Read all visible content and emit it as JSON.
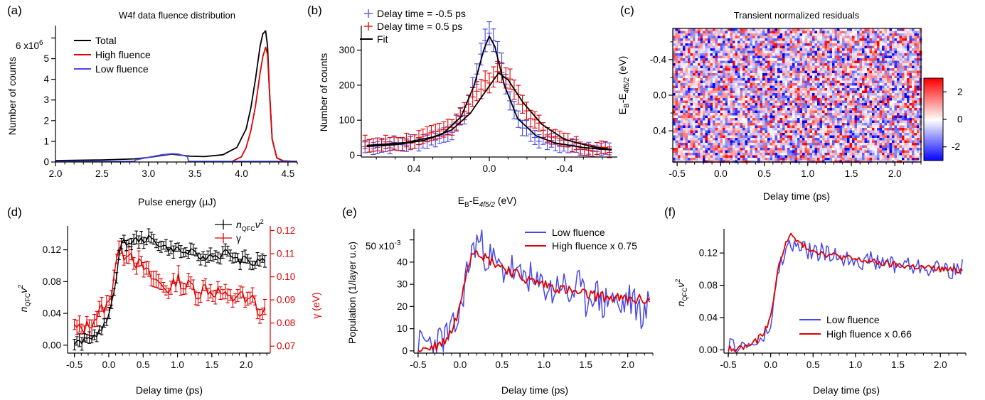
{
  "colors": {
    "black": "#000000",
    "red": "#e00000",
    "blue": "#4848e8",
    "blueDark": "#2a2ad0"
  },
  "panels": {
    "a": {
      "label": "(a)",
      "title": "W4f data fluence distribution",
      "xlabel": "Pulse energy (µJ)",
      "ylabel": "Number of counts",
      "yexp_mant": "6 x10",
      "yexp_pow": "6",
      "legend": [
        "Total",
        "High fluence",
        "Low fluence"
      ]
    },
    "b": {
      "label": "(b)",
      "xlabel_main": "E",
      "xlabel_sub1": "B",
      "xlabel_mid": "-E",
      "xlabel_sub2": "4f5/2",
      "xlabel_unit": " (eV)",
      "ylabel": "Number of counts",
      "legend": [
        "Delay time = -0.5 ps",
        "Delay time = 0.5 ps",
        "Fit"
      ]
    },
    "c": {
      "label": "(c)",
      "title": "Transient normalized residuals",
      "xlabel": "Delay time (ps)",
      "ylabel_main": "E",
      "ylabel_sub1": "B",
      "ylabel_mid": "-E",
      "ylabel_sub2": "4f5/2",
      "ylabel_unit": " (eV)",
      "colorbar_ticks": [
        "2",
        "0",
        "-2"
      ]
    },
    "d": {
      "label": "(d)",
      "xlabel": "Delay time (ps)",
      "ylabel_left": "n",
      "ylabel_left_sub": "QFC",
      "ylabel_left_nu": "ν",
      "ylabel_left_sup": "2",
      "ylabel_right": "γ (eV)",
      "legend": [
        "n",
        "γ"
      ],
      "legend_sub": "QFC",
      "legend_nu": "ν",
      "legend_sup": "2"
    },
    "e": {
      "label": "(e)",
      "xlabel": "Delay time (ps)",
      "ylabel": "Population (1/layer u.c)",
      "yexp_mant": "50 x10",
      "yexp_pow": "-3",
      "legend": [
        "Low fluence",
        "High fluence x 0.75"
      ]
    },
    "f": {
      "label": "(f)",
      "xlabel": "Delay time (ps)",
      "ylabel_main": "n",
      "ylabel_sub": "QFC",
      "ylabel_nu": "ν",
      "ylabel_sup": "2",
      "legend": [
        "Low fluence",
        "High fluence x 0.66"
      ]
    }
  },
  "chart_data": [
    {
      "panel": "a",
      "type": "line",
      "title": "W4f data fluence distribution",
      "xlabel": "Pulse energy (µJ)",
      "ylabel": "Number of counts",
      "xlim": [
        2.0,
        4.6
      ],
      "ylim": [
        0,
        6.6
      ],
      "y_multiplier": "x10^6",
      "xticks": [
        2.0,
        2.5,
        3.0,
        3.5,
        4.0,
        4.5
      ],
      "yticks": [
        0,
        1,
        2,
        3,
        4,
        5,
        6
      ],
      "series": [
        {
          "name": "Total",
          "x": [
            2.0,
            2.5,
            2.85,
            3.0,
            3.25,
            3.45,
            3.6,
            3.8,
            3.95,
            4.05,
            4.1,
            4.15,
            4.2,
            4.23,
            4.26,
            4.28,
            4.3,
            4.33,
            4.38,
            4.45,
            4.6
          ],
          "y": [
            0.07,
            0.1,
            0.15,
            0.22,
            0.38,
            0.28,
            0.26,
            0.35,
            0.7,
            1.6,
            2.6,
            4.0,
            5.6,
            6.2,
            6.35,
            5.6,
            3.5,
            1.1,
            0.2,
            0.05,
            0.03
          ]
        },
        {
          "name": "High fluence",
          "x": [
            3.9,
            4.0,
            4.05,
            4.1,
            4.15,
            4.2,
            4.23,
            4.26,
            4.28,
            4.3,
            4.33,
            4.38,
            4.45,
            4.6
          ],
          "y": [
            0.03,
            0.25,
            0.7,
            1.5,
            2.7,
            4.3,
            5.1,
            5.55,
            5.2,
            3.5,
            1.1,
            0.2,
            0.05,
            0.03
          ]
        },
        {
          "name": "Low fluence",
          "x": [
            2.0,
            2.85,
            2.86,
            2.95,
            3.05,
            3.15,
            3.25,
            3.32,
            3.42,
            3.43,
            4.6
          ],
          "y": [
            0.03,
            0.03,
            0.1,
            0.18,
            0.27,
            0.35,
            0.4,
            0.38,
            0.26,
            0.03,
            0.03
          ]
        }
      ]
    },
    {
      "panel": "b",
      "type": "scatter",
      "xlabel": "E_B-E_4f5/2 (eV)",
      "ylabel": "Number of counts",
      "xlim": [
        0.68,
        -0.68
      ],
      "ylim": [
        -5,
        370
      ],
      "xticks": [
        0.4,
        0.0,
        -0.4
      ],
      "yticks": [
        0,
        100,
        200,
        300
      ],
      "series": [
        {
          "name": "Delay time = -0.5 ps",
          "x": [
            0.65,
            0.55,
            0.45,
            0.35,
            0.25,
            0.18,
            0.12,
            0.08,
            0.05,
            0.02,
            0.0,
            -0.02,
            -0.05,
            -0.08,
            -0.12,
            -0.18,
            -0.25,
            -0.35,
            -0.45,
            -0.55,
            -0.65
          ],
          "y": [
            25,
            28,
            32,
            40,
            55,
            80,
            130,
            200,
            280,
            330,
            345,
            335,
            290,
            220,
            140,
            80,
            50,
            32,
            24,
            20,
            15
          ]
        },
        {
          "name": "Delay time = 0.5 ps",
          "x": [
            0.65,
            0.55,
            0.45,
            0.35,
            0.25,
            0.18,
            0.12,
            0.05,
            0.0,
            -0.05,
            -0.08,
            -0.12,
            -0.18,
            -0.25,
            -0.35,
            -0.45,
            -0.55,
            -0.65
          ],
          "y": [
            30,
            32,
            38,
            48,
            68,
            95,
            140,
            190,
            215,
            240,
            235,
            200,
            140,
            90,
            50,
            30,
            20,
            14
          ]
        },
        {
          "name": "Fit",
          "x": [
            0.65,
            0.5,
            0.35,
            0.25,
            0.15,
            0.08,
            0.03,
            0.0,
            -0.03,
            -0.08,
            -0.15,
            -0.25,
            -0.35,
            -0.5,
            -0.65
          ],
          "y": [
            25,
            30,
            42,
            60,
            110,
            200,
            300,
            340,
            310,
            200,
            105,
            55,
            35,
            22,
            15
          ]
        }
      ]
    },
    {
      "panel": "c",
      "type": "heatmap",
      "title": "Transient normalized residuals",
      "xlabel": "Delay time (ps)",
      "ylabel": "E_B-E_4f5/2 (eV)",
      "xlim": [
        -0.55,
        2.3
      ],
      "ylim": [
        -0.75,
        0.75
      ],
      "xticks": [
        -0.5,
        0.0,
        0.5,
        1.0,
        1.5,
        2.0
      ],
      "yticks": [
        -0.4,
        0.0,
        0.4
      ],
      "colorbar_range": [
        -3,
        3
      ],
      "colorbar_ticks": [
        2,
        0,
        -2
      ]
    },
    {
      "panel": "d",
      "type": "line",
      "xlabel": "Delay time (ps)",
      "ylabel_left": "n_QFC v^2",
      "ylabel_right": "γ (eV)",
      "xlim": [
        -0.6,
        2.35
      ],
      "ylim_left": [
        -0.01,
        0.15
      ],
      "ylim_right": [
        0.067,
        0.122
      ],
      "xticks": [
        -0.5,
        0.0,
        0.5,
        1.0,
        1.5,
        2.0
      ],
      "yticks_left": [
        0.0,
        0.04,
        0.08,
        0.12
      ],
      "yticks_right": [
        0.07,
        0.08,
        0.09,
        0.1,
        0.11,
        0.12
      ],
      "series": [
        {
          "name": "n_QFC v^2",
          "axis": "left",
          "x": [
            -0.5,
            -0.4,
            -0.3,
            -0.2,
            -0.1,
            0.0,
            0.1,
            0.15,
            0.2,
            0.3,
            0.4,
            0.5,
            0.6,
            0.7,
            0.8,
            0.9,
            1.0,
            1.1,
            1.2,
            1.3,
            1.4,
            1.5,
            1.6,
            1.7,
            1.8,
            1.9,
            2.0,
            2.1,
            2.2,
            2.3
          ],
          "y": [
            0.002,
            0.004,
            0.008,
            0.012,
            0.02,
            0.035,
            0.08,
            0.115,
            0.13,
            0.128,
            0.133,
            0.132,
            0.135,
            0.128,
            0.125,
            0.12,
            0.122,
            0.115,
            0.118,
            0.112,
            0.108,
            0.115,
            0.11,
            0.118,
            0.112,
            0.105,
            0.11,
            0.1,
            0.108,
            0.106
          ]
        },
        {
          "name": "γ",
          "axis": "right",
          "x": [
            -0.5,
            -0.4,
            -0.3,
            -0.2,
            -0.1,
            0.0,
            0.05,
            0.1,
            0.15,
            0.2,
            0.3,
            0.4,
            0.5,
            0.6,
            0.7,
            0.8,
            0.9,
            1.0,
            1.1,
            1.2,
            1.3,
            1.4,
            1.5,
            1.6,
            1.7,
            1.8,
            1.9,
            2.0,
            2.1,
            2.2,
            2.3
          ],
          "y": [
            0.078,
            0.077,
            0.079,
            0.082,
            0.086,
            0.088,
            0.095,
            0.108,
            0.112,
            0.109,
            0.112,
            0.106,
            0.104,
            0.1,
            0.098,
            0.096,
            0.094,
            0.1,
            0.095,
            0.097,
            0.092,
            0.096,
            0.093,
            0.094,
            0.091,
            0.09,
            0.094,
            0.088,
            0.091,
            0.083,
            0.086
          ]
        }
      ]
    },
    {
      "panel": "e",
      "type": "line",
      "xlabel": "Delay time (ps)",
      "ylabel": "Population (1/layer u.c)",
      "xlim": [
        -0.55,
        2.3
      ],
      "ylim": [
        -1,
        55
      ],
      "y_multiplier": "x10^-3",
      "xticks": [
        -0.5,
        0.0,
        0.5,
        1.0,
        1.5,
        2.0
      ],
      "yticks": [
        0,
        10,
        20,
        30,
        40,
        50
      ],
      "series": [
        {
          "name": "Low fluence",
          "x": [
            -0.5,
            -0.4,
            -0.3,
            -0.2,
            -0.1,
            0.0,
            0.05,
            0.1,
            0.15,
            0.2,
            0.25,
            0.3,
            0.4,
            0.5,
            0.6,
            0.7,
            0.8,
            0.9,
            1.0,
            1.1,
            1.2,
            1.3,
            1.4,
            1.5,
            1.6,
            1.7,
            1.8,
            1.9,
            2.0,
            2.1,
            2.2,
            2.28
          ],
          "y": [
            2,
            4,
            3,
            6,
            8,
            16,
            30,
            38,
            45,
            50,
            48,
            44,
            40,
            36,
            38,
            32,
            35,
            28,
            30,
            26,
            32,
            24,
            30,
            22,
            28,
            20,
            26,
            18,
            24,
            20,
            16,
            24
          ]
        },
        {
          "name": "High fluence x 0.75",
          "x": [
            -0.5,
            -0.4,
            -0.3,
            -0.2,
            -0.1,
            0.0,
            0.05,
            0.1,
            0.15,
            0.2,
            0.3,
            0.4,
            0.5,
            0.6,
            0.7,
            0.8,
            0.9,
            1.0,
            1.2,
            1.4,
            1.6,
            1.8,
            2.0,
            2.2,
            2.28
          ],
          "y": [
            1,
            1,
            2,
            4,
            9,
            20,
            32,
            40,
            45,
            46,
            42,
            40,
            38,
            36,
            34,
            32,
            31,
            30,
            28,
            26,
            25,
            24,
            23,
            23,
            23
          ]
        }
      ]
    },
    {
      "panel": "f",
      "type": "line",
      "xlabel": "Delay time (ps)",
      "ylabel": "n_QFC v^2",
      "xlim": [
        -0.55,
        2.3
      ],
      "ylim": [
        -0.004,
        0.15
      ],
      "xticks": [
        -0.5,
        0.0,
        0.5,
        1.0,
        1.5,
        2.0
      ],
      "yticks": [
        0.0,
        0.04,
        0.08,
        0.12
      ],
      "series": [
        {
          "name": "Low fluence",
          "x": [
            -0.5,
            -0.4,
            -0.3,
            -0.2,
            -0.1,
            0.0,
            0.05,
            0.1,
            0.15,
            0.2,
            0.25,
            0.3,
            0.4,
            0.5,
            0.6,
            0.7,
            0.8,
            0.9,
            1.0,
            1.1,
            1.2,
            1.3,
            1.4,
            1.5,
            1.6,
            1.7,
            1.8,
            1.9,
            2.0,
            2.1,
            2.2,
            2.28
          ],
          "y": [
            0.002,
            0.006,
            0.004,
            0.008,
            0.01,
            0.03,
            0.07,
            0.1,
            0.118,
            0.125,
            0.13,
            0.128,
            0.125,
            0.12,
            0.122,
            0.116,
            0.118,
            0.112,
            0.115,
            0.108,
            0.112,
            0.105,
            0.11,
            0.104,
            0.108,
            0.1,
            0.106,
            0.098,
            0.104,
            0.1,
            0.096,
            0.106
          ]
        },
        {
          "name": "High fluence x 0.66",
          "x": [
            -0.5,
            -0.4,
            -0.3,
            -0.2,
            -0.1,
            0.0,
            0.05,
            0.1,
            0.15,
            0.2,
            0.25,
            0.3,
            0.4,
            0.5,
            0.6,
            0.8,
            1.0,
            1.2,
            1.4,
            1.6,
            1.8,
            2.0,
            2.2,
            2.28
          ],
          "y": [
            0.001,
            0.002,
            0.004,
            0.008,
            0.018,
            0.04,
            0.075,
            0.105,
            0.125,
            0.138,
            0.142,
            0.135,
            0.128,
            0.124,
            0.12,
            0.116,
            0.112,
            0.109,
            0.106,
            0.104,
            0.102,
            0.1,
            0.098,
            0.1
          ]
        }
      ]
    }
  ]
}
